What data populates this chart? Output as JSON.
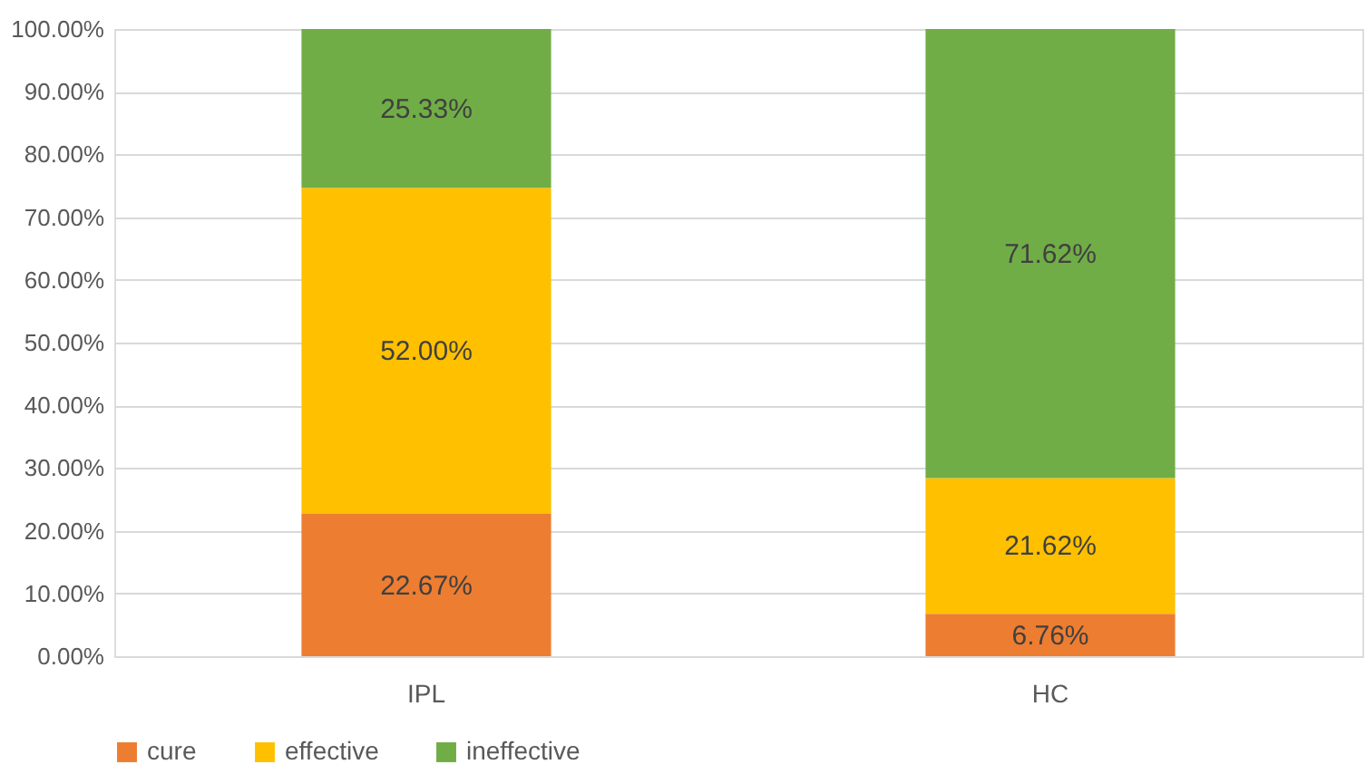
{
  "chart_data": {
    "type": "bar",
    "stacked": true,
    "categories": [
      "IPL",
      "HC"
    ],
    "series": [
      {
        "name": "cure",
        "color": "#ed7d31",
        "values": [
          22.67,
          6.76
        ],
        "value_labels": [
          "22.67%",
          "6.76%"
        ]
      },
      {
        "name": "effective",
        "color": "#ffc000",
        "values": [
          52.0,
          21.62
        ],
        "value_labels": [
          "52.00%",
          "21.62%"
        ]
      },
      {
        "name": "ineffective",
        "color": "#70ad47",
        "values": [
          25.33,
          71.62
        ],
        "value_labels": [
          "25.33%",
          "71.62%"
        ]
      }
    ],
    "ylim": [
      0,
      100
    ],
    "yticks": [
      {
        "value": 0,
        "label": "0.00%"
      },
      {
        "value": 10,
        "label": "10.00%"
      },
      {
        "value": 20,
        "label": "20.00%"
      },
      {
        "value": 30,
        "label": "30.00%"
      },
      {
        "value": 40,
        "label": "40.00%"
      },
      {
        "value": 50,
        "label": "50.00%"
      },
      {
        "value": 60,
        "label": "60.00%"
      },
      {
        "value": 70,
        "label": "70.00%"
      },
      {
        "value": 80,
        "label": "80.00%"
      },
      {
        "value": 90,
        "label": "90.00%"
      },
      {
        "value": 100,
        "label": "100.00%"
      }
    ],
    "grid": "y",
    "legend": "bottom"
  }
}
